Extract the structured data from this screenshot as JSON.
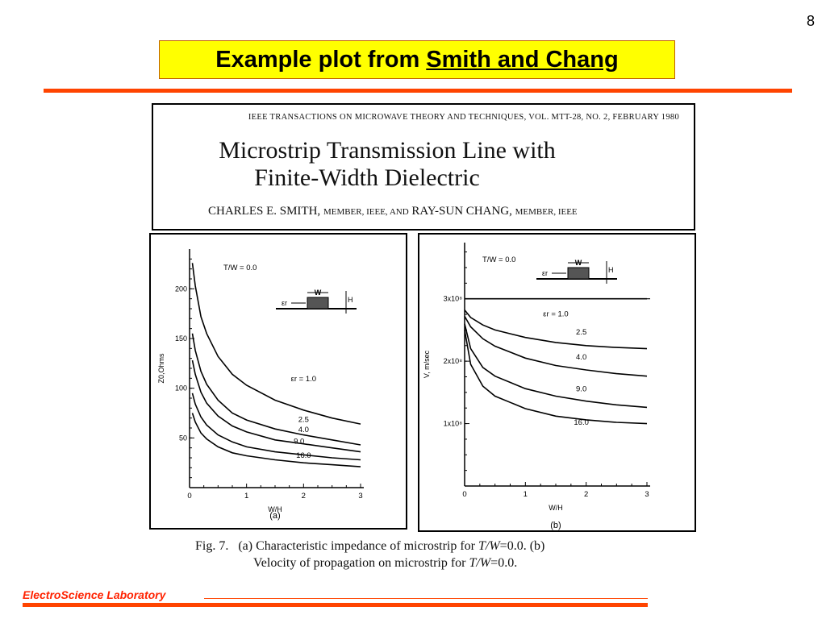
{
  "slide": {
    "number": "8",
    "title_plain": "Example plot from",
    "title_underlined": "Smith and Chang",
    "footer": "ElectroScience Laboratory"
  },
  "paper": {
    "journal": "IEEE TRANSACTIONS ON MICROWAVE THEORY AND TECHNIQUES, VOL. MTT-28, NO. 2, FEBRUARY 1980",
    "title_line1": "Microstrip Transmission Line with",
    "title_line2": "Finite-Width Dielectric",
    "author1": "CHARLES E. SMITH,",
    "author1_role": "MEMBER, IEEE, AND",
    "author2": "RAY-SUN CHANG,",
    "author2_role": "MEMBER, IEEE"
  },
  "caption": {
    "fig": "Fig. 7.",
    "line1_a": "(a) Characteristic impedance of microstrip for",
    "line1_eq": "T/W",
    "line1_b": "=0.0. (b)",
    "line2_a": "Velocity of propagation on microstrip for",
    "line2_eq": "T/W",
    "line2_b": "=0.0."
  },
  "chart_data": [
    {
      "type": "line",
      "panel_label": "(a)",
      "annotation": "T/W = 0.0",
      "xlabel": "W/H",
      "ylabel": "Z0,Ohms",
      "xlim": [
        0,
        3
      ],
      "ylim": [
        0,
        240
      ],
      "x_ticks": [
        "0",
        "1",
        "2",
        "3"
      ],
      "y_ticks": [
        "50",
        "100",
        "150",
        "200"
      ],
      "inset": {
        "w_label": "W",
        "h_label": "H",
        "eps_label": "εr"
      },
      "series": [
        {
          "name": "εr = 1.0",
          "x": [
            0.05,
            0.1,
            0.2,
            0.3,
            0.5,
            0.75,
            1.0,
            1.5,
            2.0,
            2.5,
            3.0
          ],
          "y": [
            226,
            203,
            172,
            155,
            132,
            114,
            103,
            88,
            78,
            70,
            64
          ]
        },
        {
          "name": "2.5",
          "x": [
            0.05,
            0.1,
            0.2,
            0.3,
            0.5,
            0.75,
            1.0,
            1.5,
            2.0,
            2.5,
            3.0
          ],
          "y": [
            155,
            138,
            117,
            104,
            88,
            75,
            68,
            59,
            53,
            48,
            43
          ]
        },
        {
          "name": "4.0",
          "x": [
            0.05,
            0.1,
            0.2,
            0.3,
            0.5,
            0.75,
            1.0,
            1.5,
            2.0,
            2.5,
            3.0
          ],
          "y": [
            128,
            114,
            96,
            85,
            72,
            62,
            56,
            48,
            44,
            40,
            36
          ]
        },
        {
          "name": "9.0",
          "x": [
            0.05,
            0.1,
            0.2,
            0.3,
            0.5,
            0.75,
            1.0,
            1.5,
            2.0,
            2.5,
            3.0
          ],
          "y": [
            95,
            84,
            71,
            63,
            53,
            46,
            41,
            36,
            33,
            30,
            28
          ]
        },
        {
          "name": "16.0",
          "x": [
            0.05,
            0.1,
            0.2,
            0.3,
            0.5,
            0.75,
            1.0,
            1.5,
            2.0,
            2.5,
            3.0
          ],
          "y": [
            75,
            66,
            55,
            49,
            41,
            35,
            32,
            28,
            25,
            23,
            21
          ]
        }
      ]
    },
    {
      "type": "line",
      "panel_label": "(b)",
      "annotation": "T/W = 0.0",
      "xlabel": "W/H",
      "ylabel": "V, m/sec",
      "xlim": [
        0,
        3
      ],
      "ylim": [
        0,
        3.9
      ],
      "x_ticks": [
        "0",
        "1",
        "2",
        "3"
      ],
      "y_ticks": [
        {
          "value": 1,
          "label": "1x10⁸"
        },
        {
          "value": 2,
          "label": "2x10⁸"
        },
        {
          "value": 3,
          "label": "3x10⁸"
        }
      ],
      "inset": {
        "w_label": "W",
        "h_label": "H",
        "eps_label": "εr"
      },
      "series": [
        {
          "name": "εr = 1.0",
          "x": [
            0,
            0.5,
            1.0,
            1.5,
            2.0,
            2.5,
            3.0
          ],
          "y": [
            3.0,
            3.0,
            3.0,
            3.0,
            3.0,
            3.0,
            3.0
          ]
        },
        {
          "name": "2.5",
          "x": [
            0,
            0.1,
            0.3,
            0.5,
            1.0,
            1.5,
            2.0,
            2.5,
            3.0
          ],
          "y": [
            2.82,
            2.7,
            2.58,
            2.5,
            2.38,
            2.3,
            2.25,
            2.22,
            2.2
          ]
        },
        {
          "name": "4.0",
          "x": [
            0,
            0.1,
            0.3,
            0.5,
            1.0,
            1.5,
            2.0,
            2.5,
            3.0
          ],
          "y": [
            2.72,
            2.55,
            2.36,
            2.24,
            2.05,
            1.93,
            1.86,
            1.8,
            1.76
          ]
        },
        {
          "name": "9.0",
          "x": [
            0,
            0.1,
            0.3,
            0.5,
            1.0,
            1.5,
            2.0,
            2.5,
            3.0
          ],
          "y": [
            2.6,
            2.2,
            1.9,
            1.76,
            1.56,
            1.44,
            1.36,
            1.3,
            1.26
          ]
        },
        {
          "name": "16.0",
          "x": [
            0,
            0.1,
            0.3,
            0.5,
            1.0,
            1.5,
            2.0,
            2.5,
            3.0
          ],
          "y": [
            2.5,
            1.95,
            1.6,
            1.44,
            1.24,
            1.12,
            1.06,
            1.02,
            1.0
          ]
        }
      ]
    }
  ]
}
